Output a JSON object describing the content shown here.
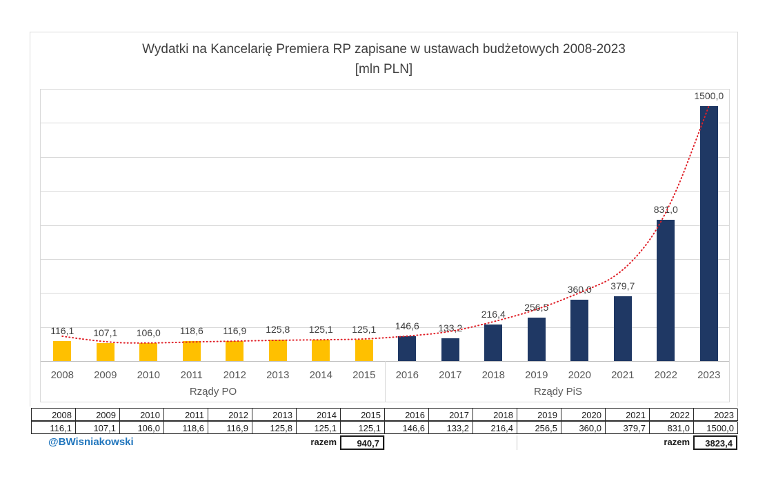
{
  "chart_data": {
    "type": "bar",
    "title": "Wydatki na Kancelarię Premiera RP zapisane w ustawach budżetowych 2008-2023",
    "subtitle": "[mln PLN]",
    "xlabel": "",
    "ylabel": "",
    "ylim": [
      0,
      1600
    ],
    "gridline_step": 200,
    "grid": true,
    "legend": "none",
    "decimal_separator": ",",
    "categories": [
      "2008",
      "2009",
      "2010",
      "2011",
      "2012",
      "2013",
      "2014",
      "2015",
      "2016",
      "2017",
      "2018",
      "2019",
      "2020",
      "2021",
      "2022",
      "2023"
    ],
    "values": [
      116.1,
      107.1,
      106.0,
      118.6,
      116.9,
      125.8,
      125.1,
      125.1,
      146.6,
      133.2,
      216.4,
      256.5,
      360.0,
      379.7,
      831.0,
      1500.0
    ],
    "value_labels": [
      "116,1",
      "107,1",
      "106,0",
      "118,6",
      "116,9",
      "125,8",
      "125,1",
      "125,1",
      "146,6",
      "133,2",
      "216,4",
      "256,5",
      "360,0",
      "379,7",
      "831,0",
      "1500,0"
    ],
    "groups": [
      {
        "label": "Rządy PO",
        "from": 0,
        "to": 7,
        "color": "#FFC000"
      },
      {
        "label": "Rządy PiS",
        "from": 8,
        "to": 15,
        "color": "#1F3864"
      }
    ],
    "trendline": {
      "style": "dotted",
      "color": "#E02028",
      "fitted_values": [
        146,
        108,
        105,
        112,
        117,
        122,
        125,
        128,
        146,
        170,
        230,
        300,
        400,
        510,
        830,
        1500
      ]
    }
  },
  "table": {
    "years": [
      "2008",
      "2009",
      "2010",
      "2011",
      "2012",
      "2013",
      "2014",
      "2015",
      "2016",
      "2017",
      "2018",
      "2019",
      "2020",
      "2021",
      "2022",
      "2023"
    ],
    "values": [
      "116,1",
      "107,1",
      "106,0",
      "118,6",
      "116,9",
      "125,8",
      "125,1",
      "125,1",
      "146,6",
      "133,2",
      "216,4",
      "256,5",
      "360,0",
      "379,7",
      "831,0",
      "1500,0"
    ],
    "razem_label": "razem",
    "po_total": "940,7",
    "pis_total": "3823,4"
  },
  "footer": {
    "watermark": "@BWisniakowski"
  }
}
